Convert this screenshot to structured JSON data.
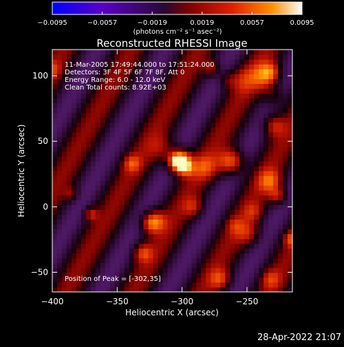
{
  "chart_data": {
    "type": "heatmap",
    "title": "Reconstructed RHESSI Image",
    "xlabel": "Heliocentric X (arcsec)",
    "ylabel": "Heliocentric Y (arcsec)",
    "xlim": [
      -400,
      -215
    ],
    "ylim": [
      -65,
      120
    ],
    "x_ticks": [
      -400,
      -350,
      -300,
      -250
    ],
    "x_tick_labels": [
      "−400",
      "−350",
      "−300",
      "−250"
    ],
    "y_ticks": [
      -50,
      0,
      50,
      100
    ],
    "y_tick_labels": [
      "−50",
      "0",
      "50",
      "100"
    ],
    "colorbar": {
      "range": [
        -0.0095,
        0.0095
      ],
      "ticks": [
        -0.0095,
        -0.0057,
        -0.0019,
        0.0019,
        0.0057,
        0.0095
      ],
      "tick_labels": [
        "−0.0095",
        "−0.0057",
        "−0.0019",
        "0.0019",
        "0.0057",
        "0.0095"
      ],
      "unit_label": "(photons cm⁻² s⁻¹ asec⁻²)",
      "colors": [
        "#0000ff",
        "#7a00c8",
        "#2a0a2a",
        "#c00000",
        "#ff7000",
        "#ffffff"
      ]
    },
    "info_lines": [
      "11-Mar-2005 17:49:44.000 to 17:51:24.000",
      "Detectors: 3F 4F 5F 6F 7F 8F, Att 0",
      "Energy Range: 6.0 - 12.0 keV",
      "Clean     Total counts: 8.92E+03"
    ],
    "peak_label": "Position of Peak = [-302,35]",
    "peak": [
      -302,
      35
    ],
    "grid": false,
    "legend": "colorbar-top"
  },
  "footer_timestamp": "28-Apr-2022 21:07"
}
